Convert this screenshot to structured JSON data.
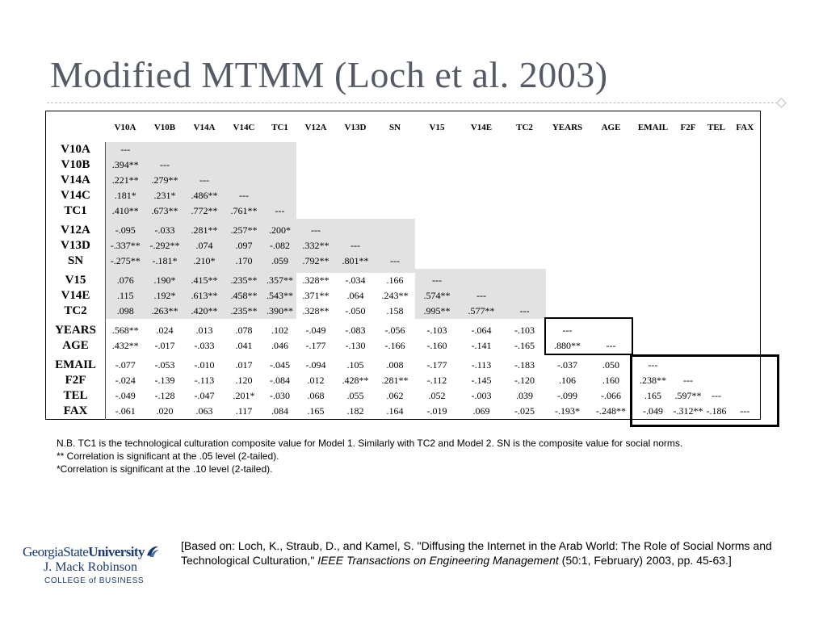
{
  "slide": {
    "title": "Modified MTMM (Loch et al. 2003)"
  },
  "table": {
    "columns": [
      "",
      "V10A",
      "V10B",
      "V14A",
      "V14C",
      "TC1",
      "V12A",
      "V13D",
      "SN",
      "V15",
      "V14E",
      "TC2",
      "YEARS",
      "AGE",
      "EMAIL",
      "F2F",
      "TEL",
      "FAX"
    ],
    "groups": [
      {
        "rows": [
          {
            "label": "V10A",
            "values": [
              "---"
            ]
          },
          {
            "label": "V10B",
            "values": [
              ".394**",
              "---"
            ]
          },
          {
            "label": "V14A",
            "values": [
              ".221**",
              ".279**",
              "---"
            ]
          },
          {
            "label": "V14C",
            "values": [
              ".181*",
              ".231*",
              ".486**",
              "---"
            ]
          },
          {
            "label": "TC1",
            "values": [
              ".410**",
              ".673**",
              ".772**",
              ".761**",
              "---"
            ]
          }
        ]
      },
      {
        "rows": [
          {
            "label": "V12A",
            "values": [
              "-.095",
              "-.033",
              ".281**",
              ".257**",
              ".200*",
              "---"
            ]
          },
          {
            "label": "V13D",
            "values": [
              "-.337**",
              "-.292**",
              ".074",
              ".097",
              "-.082",
              ".332**",
              "---"
            ]
          },
          {
            "label": "SN",
            "values": [
              "-.275**",
              "-.181*",
              ".210*",
              ".170",
              ".059",
              ".792**",
              ".801**",
              "---"
            ]
          }
        ]
      },
      {
        "rows": [
          {
            "label": "V15",
            "values": [
              ".076",
              ".190*",
              ".415**",
              ".235**",
              ".357**",
              ".328**",
              "-.034",
              ".166",
              "---"
            ]
          },
          {
            "label": "V14E",
            "values": [
              ".115",
              ".192*",
              ".613**",
              ".458**",
              ".543**",
              ".371**",
              ".064",
              ".243**",
              ".574**",
              "---"
            ]
          },
          {
            "label": "TC2",
            "values": [
              ".098",
              ".263**",
              ".420**",
              ".235**",
              ".390**",
              ".328**",
              "-.050",
              ".158",
              ".995**",
              ".577**",
              "---"
            ]
          }
        ]
      },
      {
        "rows": [
          {
            "label": "YEARS",
            "values": [
              ".568**",
              ".024",
              ".013",
              ".078",
              ".102",
              "-.049",
              "-.083",
              "-.056",
              "-.103",
              "-.064",
              "-.103",
              "---"
            ]
          },
          {
            "label": "AGE",
            "values": [
              ".432**",
              "-.017",
              "-.033",
              ".041",
              ".046",
              "-.177",
              "-.130",
              "-.166",
              "-.160",
              "-.141",
              "-.165",
              ".880**",
              "---"
            ]
          }
        ]
      },
      {
        "rows": [
          {
            "label": "EMAIL",
            "values": [
              "-.077",
              "-.053",
              "-.010",
              ".017",
              "-.045",
              "-.094",
              ".105",
              ".008",
              "-.177",
              "-.113",
              "-.183",
              "-.037",
              ".050",
              "---"
            ]
          },
          {
            "label": "F2F",
            "values": [
              "-.024",
              "-.139",
              "-.113",
              ".120",
              "-.084",
              ".012",
              ".428**",
              ".281**",
              "-.112",
              "-.145",
              "-.120",
              ".106",
              ".160",
              ".238**",
              "---"
            ]
          },
          {
            "label": "TEL",
            "values": [
              "-.049",
              "-.128",
              "-.047",
              ".201*",
              "-.030",
              ".068",
              ".055",
              ".062",
              ".052",
              "-.003",
              ".039",
              "-.099",
              "-.066",
              ".165",
              ".597**",
              "---"
            ]
          },
          {
            "label": "FAX",
            "values": [
              "-.061",
              ".020",
              ".063",
              ".117",
              ".084",
              ".165",
              ".182",
              ".164",
              "-.019",
              ".069",
              "-.025",
              "-.193*",
              "-.248**",
              "-.049",
              "-.312**",
              "-.186",
              "---"
            ]
          }
        ]
      }
    ],
    "shading_color": "#e2e2e2"
  },
  "notes": {
    "line1": "N.B. TC1 is the technological culturation composite value for Model 1.  Similarly with TC2 and Model 2.  SN is the composite value for social norms.",
    "line2": "**  Correlation is significant at the .05 level (2-tailed).",
    "line3": "*Correlation is significant at the .10 level (2-tailed)."
  },
  "logo": {
    "university_part1": "GeorgiaState",
    "university_part2": "University",
    "school": "J. Mack Robinson",
    "college": "COLLEGE of BUSINESS",
    "icon": "gsu-swoosh-icon"
  },
  "citation": {
    "part1": "[Based on: Loch, K., Straub, D., and Kamel, S. \"Diffusing the Internet in the Arab World: The Role of Social Norms and Technological Culturation,\" ",
    "journal": "IEEE Transactions on Engineering Management",
    "part2": " (50:1, February) 2003, pp. 45-63.]"
  }
}
